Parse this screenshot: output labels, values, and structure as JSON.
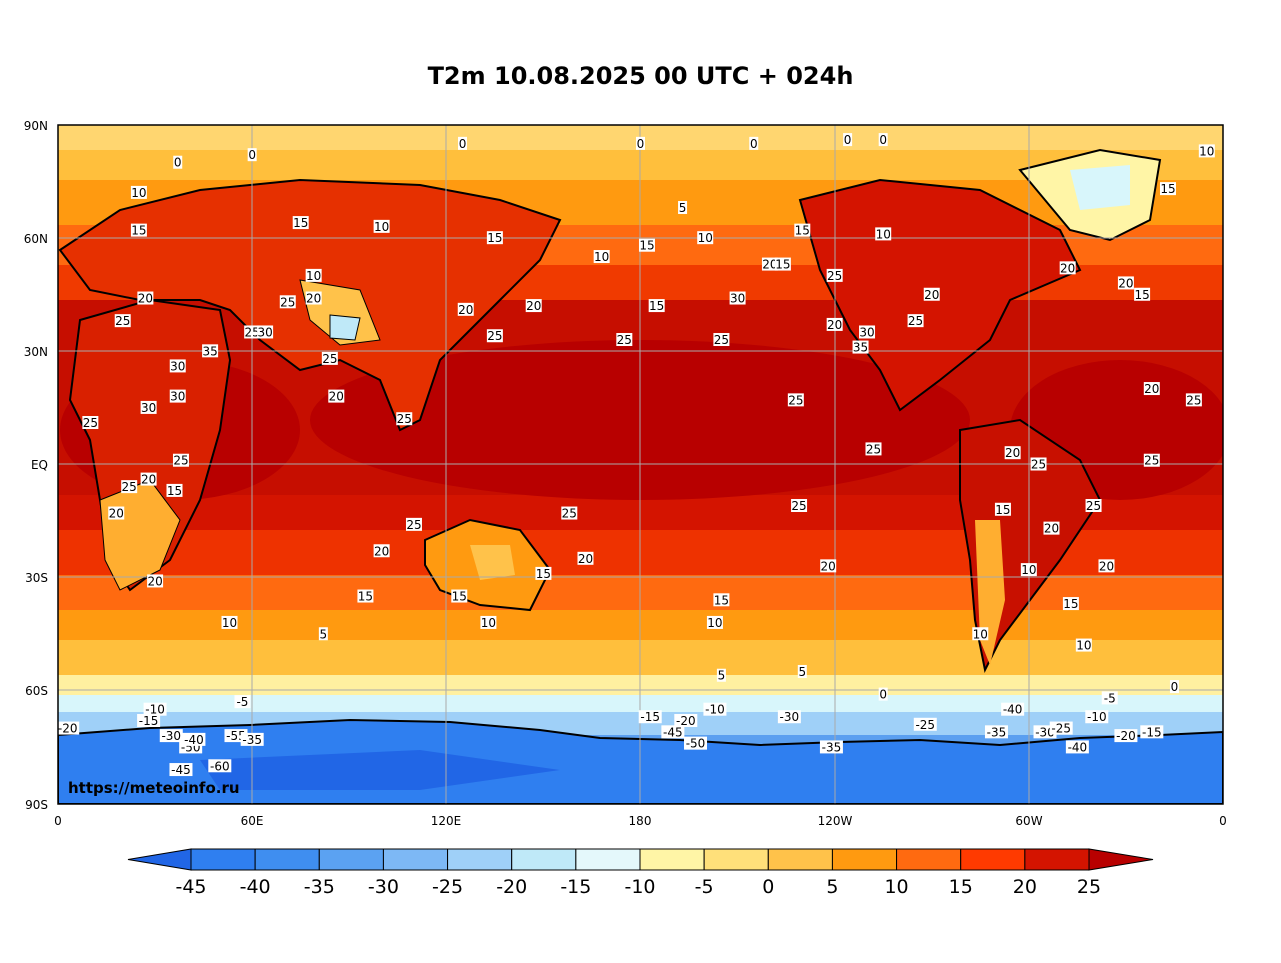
{
  "title": "T2m 10.08.2025 00 UTC + 024h",
  "watermark": "https://meteoinfo.ru",
  "lat_labels": [
    "90N",
    "60N",
    "30N",
    "EQ",
    "30S",
    "60S",
    "90S"
  ],
  "lon_labels": [
    "0",
    "60E",
    "120E",
    "180",
    "120W",
    "60W",
    "0"
  ],
  "colorbar": {
    "ticks": [
      "-45",
      "-40",
      "-35",
      "-30",
      "-25",
      "-20",
      "-15",
      "-10",
      "-5",
      "0",
      "5",
      "10",
      "15",
      "20",
      "25"
    ],
    "colors": [
      "#2166e6",
      "#2f7ff0",
      "#3f8ef0",
      "#5ba2f2",
      "#7db8f5",
      "#9fd0f8",
      "#bfe9f8",
      "#e4f8fb",
      "#fff5a6",
      "#ffe07a",
      "#ffc24a",
      "#ff9a10",
      "#ff6a10",
      "#ff3a00",
      "#d41400",
      "#b80000"
    ]
  },
  "contour_labels": [
    {
      "t": "0",
      "lon": -116,
      "lat": 86
    },
    {
      "t": "0",
      "lon": -105,
      "lat": 86
    },
    {
      "t": "0",
      "lon": 37,
      "lat": 80
    },
    {
      "t": "0",
      "lon": 60,
      "lat": 82
    },
    {
      "t": "0",
      "lon": 125,
      "lat": 85
    },
    {
      "t": "0",
      "lon": 180,
      "lat": 85
    },
    {
      "t": "0",
      "lon": -145,
      "lat": 85
    },
    {
      "t": "10",
      "lon": -5,
      "lat": 83
    },
    {
      "t": "15",
      "lon": -17,
      "lat": 73
    },
    {
      "t": "10",
      "lon": 25,
      "lat": 72
    },
    {
      "t": "15",
      "lon": 25,
      "lat": 62
    },
    {
      "t": "15",
      "lon": 75,
      "lat": 64
    },
    {
      "t": "10",
      "lon": 100,
      "lat": 63
    },
    {
      "t": "15",
      "lon": 135,
      "lat": 60
    },
    {
      "t": "10",
      "lon": -105,
      "lat": 61
    },
    {
      "t": "15",
      "lon": -130,
      "lat": 62
    },
    {
      "t": "20",
      "lon": -140,
      "lat": 53
    },
    {
      "t": "20",
      "lon": -120,
      "lat": 37
    },
    {
      "t": "15",
      "lon": -175,
      "lat": 42
    },
    {
      "t": "25",
      "lon": -155,
      "lat": 33
    },
    {
      "t": "25",
      "lon": -132,
      "lat": 17
    },
    {
      "t": "20",
      "lon": -90,
      "lat": 45
    },
    {
      "t": "30",
      "lon": -110,
      "lat": 35
    },
    {
      "t": "35",
      "lon": -112,
      "lat": 31
    },
    {
      "t": "25",
      "lon": -95,
      "lat": 38
    },
    {
      "t": "20",
      "lon": -48,
      "lat": 52
    },
    {
      "t": "15",
      "lon": -25,
      "lat": 45
    },
    {
      "t": "20",
      "lon": -30,
      "lat": 48
    },
    {
      "t": "25",
      "lon": -9,
      "lat": 17
    },
    {
      "t": "25",
      "lon": -22,
      "lat": 1
    },
    {
      "t": "25",
      "lon": -108,
      "lat": 4
    },
    {
      "t": "20",
      "lon": -65,
      "lat": 3
    },
    {
      "t": "25",
      "lon": -57,
      "lat": 0
    },
    {
      "t": "25",
      "lon": -40,
      "lat": -11
    },
    {
      "t": "20",
      "lon": -53,
      "lat": -17
    },
    {
      "t": "15",
      "lon": -68,
      "lat": -12
    },
    {
      "t": "10",
      "lon": -60,
      "lat": -28
    },
    {
      "t": "20",
      "lon": -36,
      "lat": -27
    },
    {
      "t": "15",
      "lon": -47,
      "lat": -37
    },
    {
      "t": "10",
      "lon": -43,
      "lat": -48
    },
    {
      "t": "10",
      "lon": -75,
      "lat": -45
    },
    {
      "t": "20",
      "lon": -122,
      "lat": -27
    },
    {
      "t": "25",
      "lon": -131,
      "lat": -11
    },
    {
      "t": "15",
      "lon": -155,
      "lat": -36
    },
    {
      "t": "10",
      "lon": -157,
      "lat": -42
    },
    {
      "t": "5",
      "lon": -130,
      "lat": -55
    },
    {
      "t": "5",
      "lon": -155,
      "lat": -56
    },
    {
      "t": "0",
      "lon": -105,
      "lat": -61
    },
    {
      "t": "0",
      "lon": -15,
      "lat": -59
    },
    {
      "t": "25",
      "lon": 158,
      "lat": -13
    },
    {
      "t": "20",
      "lon": 163,
      "lat": -25
    },
    {
      "t": "15",
      "lon": 150,
      "lat": -29
    },
    {
      "t": "15",
      "lon": 124,
      "lat": -35
    },
    {
      "t": "10",
      "lon": 133,
      "lat": -42
    },
    {
      "t": "5",
      "lon": 82,
      "lat": -45
    },
    {
      "t": "10",
      "lon": 53,
      "lat": -42
    },
    {
      "t": "15",
      "lon": 95,
      "lat": -35
    },
    {
      "t": "20",
      "lon": 100,
      "lat": -23
    },
    {
      "t": "25",
      "lon": 110,
      "lat": -16
    },
    {
      "t": "25",
      "lon": 38,
      "lat": 1
    },
    {
      "t": "20",
      "lon": 28,
      "lat": -4
    },
    {
      "t": "15",
      "lon": 36,
      "lat": -7
    },
    {
      "t": "25",
      "lon": 22,
      "lat": -6
    },
    {
      "t": "20",
      "lon": 18,
      "lat": -13
    },
    {
      "t": "20",
      "lon": 30,
      "lat": -31
    },
    {
      "t": "30",
      "lon": 28,
      "lat": 15
    },
    {
      "t": "30",
      "lon": 37,
      "lat": 18
    },
    {
      "t": "25",
      "lon": 10,
      "lat": 11
    },
    {
      "t": "30",
      "lon": 37,
      "lat": 26
    },
    {
      "t": "35",
      "lon": 47,
      "lat": 30
    },
    {
      "t": "25",
      "lon": 60,
      "lat": 35
    },
    {
      "t": "30",
      "lon": 64,
      "lat": 35
    },
    {
      "t": "20",
      "lon": 27,
      "lat": 44
    },
    {
      "t": "25",
      "lon": 20,
      "lat": 38
    },
    {
      "t": "20",
      "lon": 79,
      "lat": 44
    },
    {
      "t": "10",
      "lon": 79,
      "lat": 50
    },
    {
      "t": "25",
      "lon": 71,
      "lat": 43
    },
    {
      "t": "20",
      "lon": 86,
      "lat": 18
    },
    {
      "t": "25",
      "lon": 84,
      "lat": 28
    },
    {
      "t": "25",
      "lon": 107,
      "lat": 12
    },
    {
      "t": "20",
      "lon": 126,
      "lat": 41
    },
    {
      "t": "25",
      "lon": 135,
      "lat": 34
    },
    {
      "t": "20",
      "lon": 147,
      "lat": 42
    },
    {
      "t": "25",
      "lon": 175,
      "lat": 33
    },
    {
      "t": "10",
      "lon": 168,
      "lat": 55
    },
    {
      "t": "15",
      "lon": -178,
      "lat": 58
    },
    {
      "t": "10",
      "lon": -160,
      "lat": 60
    },
    {
      "t": "5",
      "lon": -167,
      "lat": 68
    },
    {
      "t": "15",
      "lon": -136,
      "lat": 53
    },
    {
      "t": "25",
      "lon": -120,
      "lat": 50
    },
    {
      "t": "30",
      "lon": -150,
      "lat": 44
    },
    {
      "t": "20",
      "lon": -22,
      "lat": 20
    },
    {
      "t": "-5",
      "lon": 57,
      "lat": -63
    },
    {
      "t": "-10",
      "lon": 30,
      "lat": -65
    },
    {
      "t": "-20",
      "lon": -166,
      "lat": -68
    },
    {
      "t": "-30",
      "lon": -134,
      "lat": -67
    },
    {
      "t": "-10",
      "lon": -157,
      "lat": -65
    },
    {
      "t": "-15",
      "lon": -177,
      "lat": -67
    },
    {
      "t": "-25",
      "lon": -92,
      "lat": -69
    },
    {
      "t": "-35",
      "lon": -121,
      "lat": -75
    },
    {
      "t": "-40",
      "lon": -45,
      "lat": -75
    },
    {
      "t": "-45",
      "lon": -170,
      "lat": -71
    },
    {
      "t": "-50",
      "lon": -163,
      "lat": -74
    },
    {
      "t": "-55",
      "lon": 55,
      "lat": -72
    },
    {
      "t": "-60",
      "lon": 50,
      "lat": -80
    },
    {
      "t": "-50",
      "lon": 41,
      "lat": -75
    },
    {
      "t": "-45",
      "lon": 38,
      "lat": -81
    },
    {
      "t": "-40",
      "lon": 42,
      "lat": -73
    },
    {
      "t": "-35",
      "lon": 60,
      "lat": -73
    },
    {
      "t": "-30",
      "lon": 35,
      "lat": -72
    },
    {
      "t": "-20",
      "lon": 3,
      "lat": -70
    },
    {
      "t": "-15",
      "lon": 28,
      "lat": -68
    },
    {
      "t": "-40",
      "lon": -65,
      "lat": -65
    },
    {
      "t": "-35",
      "lon": -70,
      "lat": -71
    },
    {
      "t": "-30",
      "lon": -55,
      "lat": -71
    },
    {
      "t": "-25",
      "lon": -50,
      "lat": -70
    },
    {
      "t": "-20",
      "lon": -30,
      "lat": -72
    },
    {
      "t": "-15",
      "lon": -22,
      "lat": -71
    },
    {
      "t": "-10",
      "lon": -39,
      "lat": -67
    },
    {
      "t": "-5",
      "lon": -35,
      "lat": -62
    }
  ]
}
